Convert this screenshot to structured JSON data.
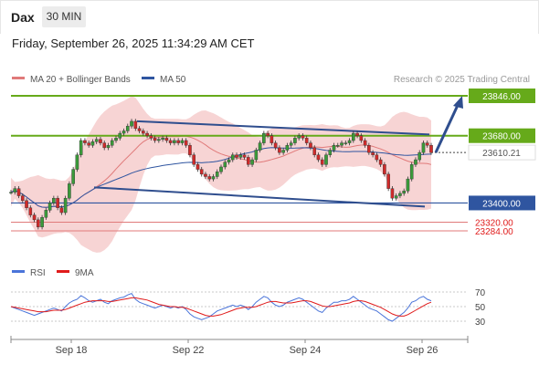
{
  "header": {
    "symbol": "Dax",
    "timeframe": "30 MIN",
    "datetime": "Friday, September 26, 2025 11:34:29 AM CET"
  },
  "legend": {
    "ma20": "MA 20 + Bollinger Bands",
    "ma50": "MA 50",
    "credit": "Research © 2025 Trading Central"
  },
  "colors": {
    "candle_up": "#3a9a3a",
    "candle_down": "#d02a2a",
    "bollinger": "#f4c6c6",
    "ma20": "#e07a7a",
    "ma50": "#2f55a0",
    "trend": "#2f4e8e",
    "resistance": "#66aa1a",
    "support": "#2f55a0",
    "weak_support": "#e07a7a",
    "rsi": "#4a74d9",
    "rsi_ma": "#e01b1b"
  },
  "chart_data": {
    "type": "candlestick",
    "instrument": "Dax",
    "timeframe": "30 MIN",
    "x_ticks": [
      "Sep 18",
      "Sep 22",
      "Sep 24",
      "Sep 26"
    ],
    "ylim": [
      23230,
      23920
    ],
    "last_price": "23610.21",
    "levels": [
      {
        "value": 23846,
        "label": "23846.00",
        "kind": "resistance"
      },
      {
        "value": 23680,
        "label": "23680.00",
        "kind": "resistance"
      },
      {
        "value": 23400,
        "label": "23400.00",
        "kind": "support"
      },
      {
        "value": 23320,
        "label": "23320.00",
        "kind": "support"
      },
      {
        "value": 23284,
        "label": "23284.00",
        "kind": "support"
      }
    ],
    "closes": [
      23445,
      23460,
      23430,
      23410,
      23380,
      23350,
      23330,
      23300,
      23340,
      23370,
      23400,
      23420,
      23380,
      23360,
      23420,
      23480,
      23540,
      23600,
      23660,
      23650,
      23640,
      23655,
      23665,
      23650,
      23630,
      23640,
      23660,
      23670,
      23690,
      23700,
      23720,
      23740,
      23710,
      23700,
      23690,
      23680,
      23670,
      23660,
      23665,
      23670,
      23660,
      23650,
      23660,
      23650,
      23660,
      23640,
      23600,
      23560,
      23540,
      23520,
      23510,
      23500,
      23510,
      23530,
      23550,
      23570,
      23580,
      23600,
      23590,
      23600,
      23590,
      23560,
      23580,
      23620,
      23650,
      23690,
      23680,
      23650,
      23630,
      23610,
      23620,
      23640,
      23650,
      23670,
      23680,
      23670,
      23650,
      23630,
      23600,
      23580,
      23560,
      23600,
      23620,
      23640,
      23640,
      23650,
      23650,
      23660,
      23690,
      23680,
      23660,
      23640,
      23610,
      23600,
      23580,
      23560,
      23520,
      23460,
      23420,
      23430,
      23440,
      23450,
      23500,
      23560,
      23580,
      23610,
      23650,
      23640,
      23610
    ],
    "rsi": {
      "ticks": [
        70,
        50,
        30
      ],
      "ylim": [
        10,
        80
      ],
      "rsi": [
        50,
        48,
        46,
        44,
        42,
        40,
        38,
        40,
        42,
        44,
        46,
        48,
        46,
        44,
        50,
        55,
        58,
        60,
        65,
        62,
        58,
        56,
        58,
        60,
        56,
        54,
        58,
        60,
        62,
        63,
        66,
        68,
        60,
        56,
        54,
        52,
        50,
        48,
        50,
        52,
        50,
        48,
        50,
        48,
        50,
        46,
        40,
        36,
        34,
        32,
        34,
        36,
        40,
        44,
        46,
        48,
        50,
        52,
        50,
        52,
        50,
        46,
        50,
        56,
        60,
        64,
        62,
        56,
        52,
        50,
        52,
        56,
        58,
        60,
        62,
        60,
        56,
        52,
        48,
        44,
        42,
        48,
        52,
        56,
        56,
        58,
        58,
        60,
        64,
        60,
        56,
        52,
        48,
        46,
        44,
        40,
        36,
        32,
        30,
        34,
        38,
        42,
        48,
        56,
        58,
        62,
        64,
        60,
        58
      ],
      "rsi_ma": [
        50,
        49,
        48,
        47,
        46,
        45,
        44,
        43,
        43,
        43,
        44,
        45,
        45,
        45,
        46,
        48,
        50,
        52,
        54,
        56,
        57,
        58,
        58,
        58,
        58,
        57,
        57,
        58,
        59,
        60,
        61,
        62,
        62,
        61,
        60,
        59,
        57,
        55,
        53,
        52,
        51,
        50,
        50,
        49,
        49,
        48,
        46,
        44,
        42,
        40,
        38,
        37,
        37,
        38,
        39,
        41,
        43,
        45,
        47,
        48,
        49,
        49,
        49,
        50,
        52,
        54,
        56,
        57,
        57,
        56,
        55,
        55,
        55,
        56,
        57,
        58,
        58,
        57,
        55,
        53,
        51,
        50,
        50,
        51,
        52,
        53,
        54,
        55,
        57,
        58,
        58,
        57,
        55,
        53,
        51,
        49,
        46,
        43,
        40,
        38,
        37,
        37,
        39,
        42,
        45,
        48,
        51,
        54,
        56
      ]
    }
  },
  "rsi_legend": {
    "rsi": "RSI",
    "ma": "9MA"
  }
}
